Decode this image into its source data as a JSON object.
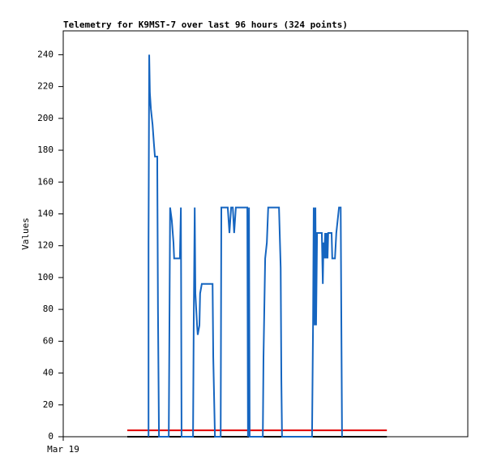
{
  "chart_data": {
    "type": "line",
    "title": "Telemetry for K9MST-7 over last 96 hours (324 points)",
    "y_label": "Values",
    "xlim": [
      0,
      120
    ],
    "xticks": [
      {
        "value": 0,
        "label": "Mar 19"
      }
    ],
    "ylim": [
      0,
      255
    ],
    "yticks": [
      0,
      20,
      40,
      60,
      80,
      100,
      120,
      140,
      160,
      180,
      200,
      220,
      240
    ],
    "series": [
      {
        "color": "#1565c0",
        "x": [
          25.3,
          25.3,
          25.5,
          25.7,
          26.0,
          26.5,
          26.9,
          27.2,
          27.9,
          27.9,
          28.1,
          28.4,
          31.3,
          31.5,
          31.7,
          32.2,
          32.7,
          32.9,
          34.6,
          34.9,
          35.1,
          38.5,
          38.7,
          39.0,
          39.2,
          39.7,
          39.9,
          40.4,
          40.6,
          41.1,
          44.3,
          44.5,
          45.0,
          46.7,
          46.9,
          48.8,
          49.3,
          49.8,
          50.3,
          50.7,
          51.2,
          54.6,
          54.8,
          55.1,
          55.3,
          59.2,
          59.4,
          59.9,
          60.4,
          60.8,
          64.0,
          64.5,
          64.7,
          64.9,
          73.8,
          74.1,
          74.3,
          74.6,
          74.8,
          75.0,
          75.3,
          76.7,
          77.0,
          77.2,
          77.4,
          77.7,
          77.9,
          78.1,
          78.4,
          78.6,
          79.6,
          79.8,
          80.6,
          81.0,
          81.8,
          82.3,
          82.5,
          82.7
        ],
        "values": [
          0,
          122,
          240,
          216,
          206,
          196,
          184,
          176,
          176,
          168,
          80,
          0,
          0,
          70,
          144,
          136,
          122,
          112,
          112,
          144,
          0,
          0,
          70,
          144,
          90,
          70,
          64,
          70,
          90,
          96,
          96,
          50,
          0,
          0,
          144,
          144,
          128,
          144,
          144,
          128,
          144,
          144,
          0,
          144,
          0,
          0,
          50,
          112,
          122,
          144,
          144,
          106,
          36,
          0,
          0,
          70,
          144,
          70,
          144,
          70,
          128,
          128,
          96,
          122,
          112,
          128,
          112,
          128,
          112,
          128,
          128,
          112,
          112,
          128,
          144,
          144,
          70,
          0
        ]
      },
      {
        "color": "#e00000",
        "x": [
          19.0,
          96.0
        ],
        "values": [
          4,
          4
        ]
      },
      {
        "color": "#000000",
        "x": [
          19.0,
          96.0
        ],
        "values": [
          0,
          0
        ]
      }
    ]
  }
}
